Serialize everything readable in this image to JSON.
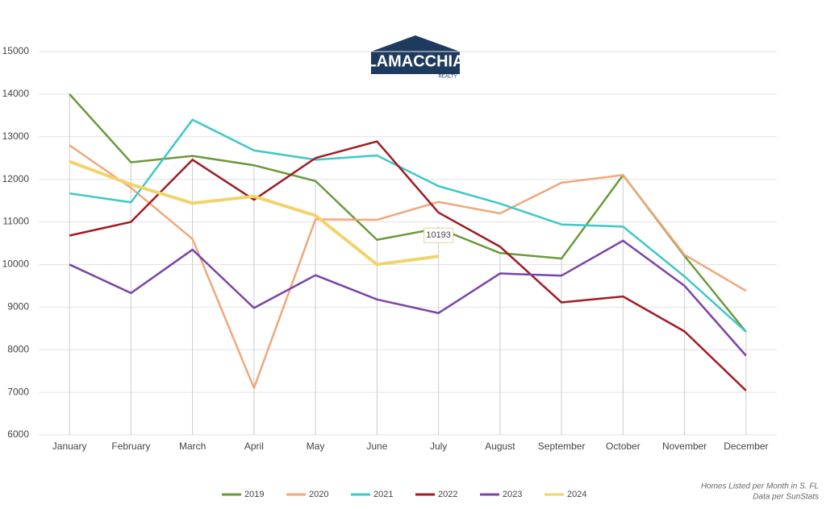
{
  "chart_data": {
    "type": "line",
    "logo": {
      "name": "LAMACCHIA",
      "tagline": "REALTY"
    },
    "categories": [
      "January",
      "February",
      "March",
      "April",
      "May",
      "June",
      "July",
      "August",
      "September",
      "October",
      "November",
      "December"
    ],
    "series": [
      {
        "name": "2019",
        "color": "#6a9a3a",
        "values": [
          14000,
          12400,
          12550,
          12330,
          11960,
          10580,
          10850,
          10270,
          10140,
          12100,
          10200,
          8420
        ]
      },
      {
        "name": "2020",
        "color": "#f0a77a",
        "values": [
          12800,
          11800,
          10600,
          7100,
          11060,
          11050,
          11470,
          11200,
          11920,
          12100,
          10230,
          9380
        ]
      },
      {
        "name": "2021",
        "color": "#3ec8c8",
        "values": [
          11670,
          11460,
          13400,
          12680,
          12460,
          12560,
          11840,
          11430,
          10940,
          10890,
          9720,
          8420
        ]
      },
      {
        "name": "2022",
        "color": "#a01c22",
        "values": [
          10680,
          11000,
          12460,
          11520,
          12500,
          12890,
          11220,
          10420,
          9110,
          9250,
          8430,
          7040
        ]
      },
      {
        "name": "2023",
        "color": "#7a44a8",
        "values": [
          10000,
          9330,
          10350,
          8980,
          9750,
          9180,
          8860,
          9790,
          9740,
          10560,
          9500,
          7860
        ]
      },
      {
        "name": "2024",
        "color": "#f2d36a",
        "values": [
          12420,
          11880,
          11440,
          11600,
          11150,
          10000,
          10193,
          null,
          null,
          null,
          null,
          null
        ]
      }
    ],
    "annotations": [
      {
        "series": "2024",
        "category": "July",
        "text": "10193"
      }
    ],
    "ylim": [
      6000,
      15000
    ],
    "yticks": [
      6000,
      7000,
      8000,
      9000,
      10000,
      11000,
      12000,
      13000,
      14000,
      15000
    ],
    "grid": true,
    "legend": "bottom",
    "notes": [
      "Homes Listed per Month in S. FL",
      "Data per SunStats"
    ]
  }
}
